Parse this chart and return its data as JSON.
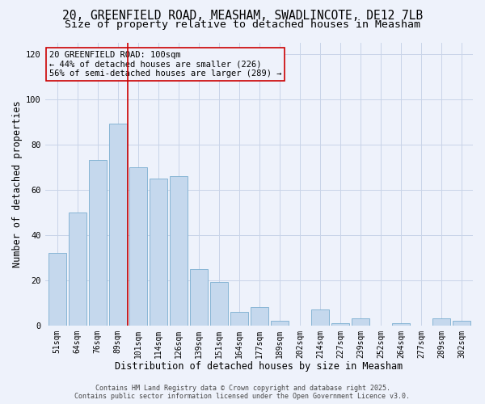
{
  "title_line1": "20, GREENFIELD ROAD, MEASHAM, SWADLINCOTE, DE12 7LB",
  "title_line2": "Size of property relative to detached houses in Measham",
  "xlabel": "Distribution of detached houses by size in Measham",
  "ylabel": "Number of detached properties",
  "categories": [
    "51sqm",
    "64sqm",
    "76sqm",
    "89sqm",
    "101sqm",
    "114sqm",
    "126sqm",
    "139sqm",
    "151sqm",
    "164sqm",
    "177sqm",
    "189sqm",
    "202sqm",
    "214sqm",
    "227sqm",
    "239sqm",
    "252sqm",
    "264sqm",
    "277sqm",
    "289sqm",
    "302sqm"
  ],
  "values": [
    32,
    50,
    73,
    89,
    70,
    65,
    66,
    25,
    19,
    6,
    8,
    2,
    0,
    7,
    1,
    3,
    0,
    1,
    0,
    3,
    2
  ],
  "bar_color": "#c5d8ed",
  "bar_edge_color": "#7aaed0",
  "bg_color": "#eef2fb",
  "grid_color": "#c8d4e8",
  "vline_color": "#cc0000",
  "vline_x_index": 4,
  "annotation_line1": "20 GREENFIELD ROAD: 100sqm",
  "annotation_line2": "← 44% of detached houses are smaller (226)",
  "annotation_line3": "56% of semi-detached houses are larger (289) →",
  "annotation_box_color": "#cc0000",
  "annotation_bg": "#eef2fb",
  "ylim": [
    0,
    125
  ],
  "yticks": [
    0,
    20,
    40,
    60,
    80,
    100,
    120
  ],
  "footer_line1": "Contains HM Land Registry data © Crown copyright and database right 2025.",
  "footer_line2": "Contains public sector information licensed under the Open Government Licence v3.0.",
  "title_fontsize": 10.5,
  "subtitle_fontsize": 9.5,
  "tick_fontsize": 7,
  "xlabel_fontsize": 8.5,
  "ylabel_fontsize": 8.5,
  "annotation_fontsize": 7.5,
  "footer_fontsize": 6
}
